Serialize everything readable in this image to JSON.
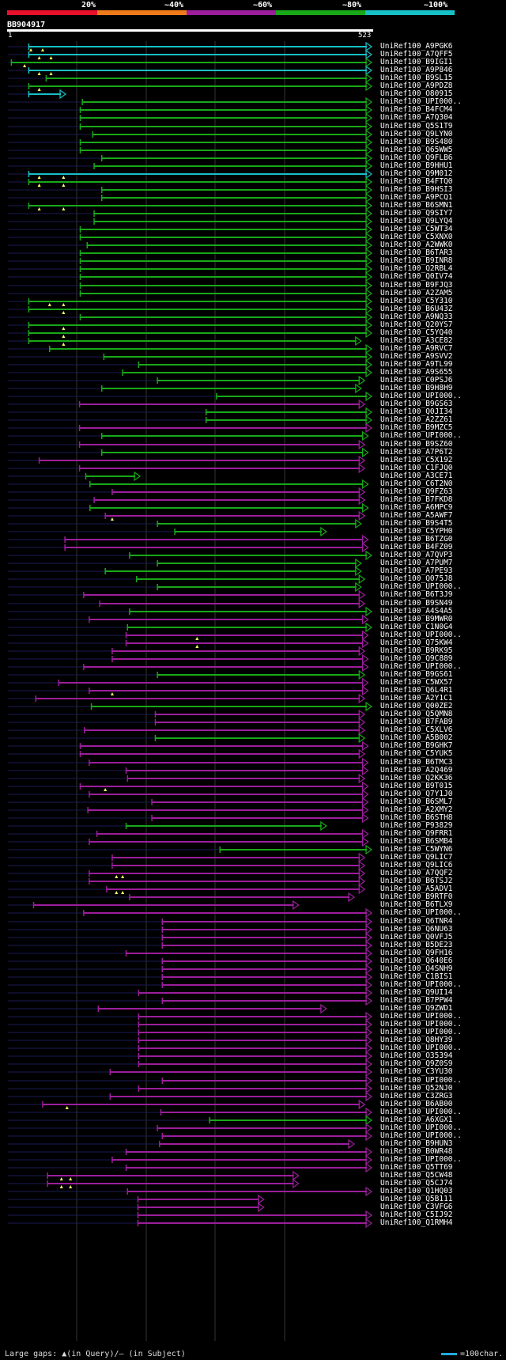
{
  "legend": {
    "labels": [
      "20%",
      "~40%",
      "~60%",
      "~80%",
      "~100%"
    ],
    "colors": [
      "#e8102a",
      "#ef7a1a",
      "#9c1e9c",
      "#18a818",
      "#16c0c6"
    ]
  },
  "query": {
    "id": "BB904917",
    "start": "1",
    "end": "523",
    "length": 523
  },
  "hits": [
    {
      "id": "UniRef100_A9PGK6",
      "c": "cyan",
      "s": 30,
      "e": 523,
      "t": [
        33,
        50
      ]
    },
    {
      "id": "UniRef100_A7QFF5",
      "c": "cyan",
      "s": 30,
      "e": 523,
      "t": [
        45,
        62
      ]
    },
    {
      "id": "UniRef100_B9IGI1",
      "c": "green",
      "s": 5,
      "e": 523,
      "t": [
        24
      ]
    },
    {
      "id": "UniRef100_A9P846",
      "c": "cyan",
      "s": 30,
      "e": 523,
      "t": [
        45,
        62
      ]
    },
    {
      "id": "UniRef100_B9SL15",
      "c": "green",
      "s": 55,
      "e": 523
    },
    {
      "id": "UniRef100_A9PDZ8",
      "c": "green",
      "s": 30,
      "e": 523,
      "t": [
        45
      ]
    },
    {
      "id": "UniRef100_O80915",
      "c": "cyan",
      "s": 30,
      "e": 83
    },
    {
      "id": "UniRef100_UPI000..",
      "c": "green",
      "s": 107,
      "e": 523
    },
    {
      "id": "UniRef100_B4FCM4",
      "c": "green",
      "s": 104,
      "e": 523
    },
    {
      "id": "UniRef100_A7Q304",
      "c": "green",
      "s": 104,
      "e": 523
    },
    {
      "id": "UniRef100_Q5S1T9",
      "c": "green",
      "s": 104,
      "e": 523
    },
    {
      "id": "UniRef100_Q9LYN0",
      "c": "green",
      "s": 122,
      "e": 523
    },
    {
      "id": "UniRef100_B9S480",
      "c": "green",
      "s": 104,
      "e": 523
    },
    {
      "id": "UniRef100_Q65WW5",
      "c": "green",
      "s": 104,
      "e": 523
    },
    {
      "id": "UniRef100_Q9FLB6",
      "c": "green",
      "s": 135,
      "e": 523
    },
    {
      "id": "UniRef100_B9HHU1",
      "c": "green",
      "s": 124,
      "e": 523
    },
    {
      "id": "UniRef100_Q9M012",
      "c": "cyan",
      "s": 30,
      "e": 523,
      "t": [
        45,
        80
      ]
    },
    {
      "id": "UniRef100_B4FTQ0",
      "c": "green",
      "s": 30,
      "e": 523,
      "t": [
        45,
        80
      ]
    },
    {
      "id": "UniRef100_B9HSI3",
      "c": "green",
      "s": 135,
      "e": 523
    },
    {
      "id": "UniRef100_A9PCQ1",
      "c": "green",
      "s": 135,
      "e": 523
    },
    {
      "id": "UniRef100_B6SMN1",
      "c": "green",
      "s": 30,
      "e": 523,
      "t": [
        45,
        80
      ]
    },
    {
      "id": "UniRef100_Q9SIY7",
      "c": "green",
      "s": 124,
      "e": 523
    },
    {
      "id": "UniRef100_Q9LYQ4",
      "c": "green",
      "s": 124,
      "e": 523
    },
    {
      "id": "UniRef100_C5WT34",
      "c": "green",
      "s": 104,
      "e": 523
    },
    {
      "id": "UniRef100_C5XNX0",
      "c": "green",
      "s": 104,
      "e": 523
    },
    {
      "id": "UniRef100_A2WWK0",
      "c": "green",
      "s": 114,
      "e": 523
    },
    {
      "id": "UniRef100_B6TAR3",
      "c": "green",
      "s": 104,
      "e": 523
    },
    {
      "id": "UniRef100_B9INR8",
      "c": "green",
      "s": 104,
      "e": 523
    },
    {
      "id": "UniRef100_Q2RBL4",
      "c": "green",
      "s": 104,
      "e": 523
    },
    {
      "id": "UniRef100_Q0IV74",
      "c": "green",
      "s": 104,
      "e": 523
    },
    {
      "id": "UniRef100_B9FJQ3",
      "c": "green",
      "s": 104,
      "e": 523
    },
    {
      "id": "UniRef100_A2ZAM5",
      "c": "green",
      "s": 104,
      "e": 523
    },
    {
      "id": "UniRef100_C5Y310",
      "c": "green",
      "s": 30,
      "e": 523,
      "t": [
        60,
        80
      ]
    },
    {
      "id": "UniRef100_B6U43Z",
      "c": "green",
      "s": 30,
      "e": 523,
      "t": [
        80
      ]
    },
    {
      "id": "UniRef100_A9NQ33",
      "c": "green",
      "s": 104,
      "e": 523
    },
    {
      "id": "UniRef100_Q20YS7",
      "c": "green",
      "s": 30,
      "e": 523,
      "t": [
        80
      ]
    },
    {
      "id": "UniRef100_C5YQ40",
      "c": "green",
      "s": 30,
      "e": 523,
      "t": [
        80
      ]
    },
    {
      "id": "UniRef100_A3CE82",
      "c": "green",
      "s": 30,
      "e": 508,
      "t": [
        80
      ]
    },
    {
      "id": "UniRef100_A9RVC7",
      "c": "green",
      "s": 60,
      "e": 523
    },
    {
      "id": "UniRef100_A9SVV2",
      "c": "green",
      "s": 138,
      "e": 523
    },
    {
      "id": "UniRef100_A9TL99",
      "c": "green",
      "s": 188,
      "e": 523
    },
    {
      "id": "UniRef100_A9S655",
      "c": "green",
      "s": 165,
      "e": 523
    },
    {
      "id": "UniRef100_C0PSJ6",
      "c": "green",
      "s": 215,
      "e": 513
    },
    {
      "id": "UniRef100_B9H8H9",
      "c": "green",
      "s": 135,
      "e": 508
    },
    {
      "id": "UniRef100_UPI000..",
      "c": "green",
      "s": 300,
      "e": 523
    },
    {
      "id": "UniRef100_B9GS63",
      "c": "magenta",
      "s": 103,
      "e": 513
    },
    {
      "id": "UniRef100_Q0JI34",
      "c": "green",
      "s": 285,
      "e": 523
    },
    {
      "id": "UniRef100_A2ZZ61",
      "c": "green",
      "s": 285,
      "e": 523
    },
    {
      "id": "UniRef100_B9MZC5",
      "c": "magenta",
      "s": 103,
      "e": 523
    },
    {
      "id": "UniRef100_UPI000..",
      "c": "green",
      "s": 135,
      "e": 518
    },
    {
      "id": "UniRef100_B9SZ60",
      "c": "magenta",
      "s": 103,
      "e": 513
    },
    {
      "id": "UniRef100_A7P6T2",
      "c": "green",
      "s": 135,
      "e": 518
    },
    {
      "id": "UniRef100_C5X192",
      "c": "magenta",
      "s": 45,
      "e": 513
    },
    {
      "id": "UniRef100_C1FJQ0",
      "c": "magenta",
      "s": 103,
      "e": 513
    },
    {
      "id": "UniRef100_A3CE71",
      "c": "green",
      "s": 112,
      "e": 190
    },
    {
      "id": "UniRef100_C6T2N0",
      "c": "green",
      "s": 118,
      "e": 518
    },
    {
      "id": "UniRef100_Q9FZ63",
      "c": "magenta",
      "s": 150,
      "e": 513
    },
    {
      "id": "UniRef100_B7FKD8",
      "c": "magenta",
      "s": 124,
      "e": 513
    },
    {
      "id": "UniRef100_A6MPC9",
      "c": "green",
      "s": 118,
      "e": 518
    },
    {
      "id": "UniRef100_A5AWF7",
      "c": "magenta",
      "s": 140,
      "e": 513,
      "t": [
        150
      ]
    },
    {
      "id": "UniRef100_B9S4T5",
      "c": "green",
      "s": 215,
      "e": 508
    },
    {
      "id": "UniRef100_C5YPH0",
      "c": "green",
      "s": 240,
      "e": 458
    },
    {
      "id": "UniRef100_B6TZG0",
      "c": "magenta",
      "s": 82,
      "e": 518
    },
    {
      "id": "UniRef100_B4FZ09",
      "c": "magenta",
      "s": 82,
      "e": 518
    },
    {
      "id": "UniRef100_A7QVP3",
      "c": "green",
      "s": 175,
      "e": 523
    },
    {
      "id": "UniRef100_A7PUM7",
      "c": "green",
      "s": 215,
      "e": 508
    },
    {
      "id": "UniRef100_A7PE93",
      "c": "green",
      "s": 140,
      "e": 508
    },
    {
      "id": "UniRef100_Q075J8",
      "c": "green",
      "s": 185,
      "e": 513
    },
    {
      "id": "UniRef100_UPI000..",
      "c": "green",
      "s": 215,
      "e": 508
    },
    {
      "id": "UniRef100_B6T3J9",
      "c": "magenta",
      "s": 109,
      "e": 513
    },
    {
      "id": "UniRef100_B9SN49",
      "c": "magenta",
      "s": 132,
      "e": 513
    },
    {
      "id": "UniRef100_A4S4A5",
      "c": "green",
      "s": 175,
      "e": 523
    },
    {
      "id": "UniRef100_B9MWR0",
      "c": "magenta",
      "s": 117,
      "e": 518
    },
    {
      "id": "UniRef100_C1N0G4",
      "c": "green",
      "s": 172,
      "e": 523
    },
    {
      "id": "UniRef100_UPI000..",
      "c": "magenta",
      "s": 170,
      "e": 518,
      "t": [
        272
      ]
    },
    {
      "id": "UniRef100_Q75KW4",
      "c": "magenta",
      "s": 170,
      "e": 518,
      "t": [
        272
      ]
    },
    {
      "id": "UniRef100_B9RK95",
      "c": "magenta",
      "s": 150,
      "e": 513
    },
    {
      "id": "UniRef100_Q9C889",
      "c": "magenta",
      "s": 150,
      "e": 518
    },
    {
      "id": "UniRef100_UPI000..",
      "c": "magenta",
      "s": 109,
      "e": 518
    },
    {
      "id": "UniRef100_B9GS61",
      "c": "green",
      "s": 215,
      "e": 513
    },
    {
      "id": "UniRef100_C5WX57",
      "c": "magenta",
      "s": 73,
      "e": 518
    },
    {
      "id": "UniRef100_Q6L4R1",
      "c": "magenta",
      "s": 117,
      "e": 518,
      "t": [
        150
      ]
    },
    {
      "id": "UniRef100_A2Y1C1",
      "c": "magenta",
      "s": 40,
      "e": 513
    },
    {
      "id": "UniRef100_Q00ZE2",
      "c": "green",
      "s": 120,
      "e": 523
    },
    {
      "id": "UniRef100_Q5QMN8",
      "c": "magenta",
      "s": 212,
      "e": 513
    },
    {
      "id": "UniRef100_B7FAB9",
      "c": "magenta",
      "s": 212,
      "e": 513
    },
    {
      "id": "UniRef100_C5XLV6",
      "c": "magenta",
      "s": 110,
      "e": 513
    },
    {
      "id": "UniRef100_A5B002",
      "c": "green",
      "s": 212,
      "e": 513
    },
    {
      "id": "UniRef100_B9GHK7",
      "c": "magenta",
      "s": 104,
      "e": 518
    },
    {
      "id": "UniRef100_C5YUK5",
      "c": "magenta",
      "s": 104,
      "e": 513
    },
    {
      "id": "UniRef100_B6TMC3",
      "c": "magenta",
      "s": 117,
      "e": 518
    },
    {
      "id": "UniRef100_A2Q469",
      "c": "magenta",
      "s": 170,
      "e": 518
    },
    {
      "id": "UniRef100_Q2KK36",
      "c": "magenta",
      "s": 172,
      "e": 513
    },
    {
      "id": "UniRef100_B9T015",
      "c": "magenta",
      "s": 104,
      "e": 518,
      "t": [
        140
      ]
    },
    {
      "id": "UniRef100_Q7Y1J0",
      "c": "magenta",
      "s": 117,
      "e": 518
    },
    {
      "id": "UniRef100_B6SML7",
      "c": "magenta",
      "s": 207,
      "e": 518
    },
    {
      "id": "UniRef100_A2XMY2",
      "c": "magenta",
      "s": 115,
      "e": 518
    },
    {
      "id": "UniRef100_B6STH8",
      "c": "magenta",
      "s": 207,
      "e": 518
    },
    {
      "id": "UniRef100_P93829",
      "c": "green",
      "s": 170,
      "e": 458
    },
    {
      "id": "UniRef100_Q9FRR1",
      "c": "magenta",
      "s": 128,
      "e": 518
    },
    {
      "id": "UniRef100_B6SMB4",
      "c": "magenta",
      "s": 117,
      "e": 518
    },
    {
      "id": "UniRef100_C5WYN6",
      "c": "green",
      "s": 305,
      "e": 523
    },
    {
      "id": "UniRef100_Q9LIC7",
      "c": "magenta",
      "s": 150,
      "e": 513
    },
    {
      "id": "UniRef100_Q9LIC6",
      "c": "magenta",
      "s": 150,
      "e": 513
    },
    {
      "id": "UniRef100_A7QQF2",
      "c": "magenta",
      "s": 117,
      "e": 513,
      "t": [
        156,
        165
      ]
    },
    {
      "id": "UniRef100_B6TSJ2",
      "c": "magenta",
      "s": 117,
      "e": 513
    },
    {
      "id": "UniRef100_A5ADV1",
      "c": "magenta",
      "s": 142,
      "e": 513,
      "t": [
        156,
        165
      ]
    },
    {
      "id": "UniRef100_B9RTF0",
      "c": "magenta",
      "s": 175,
      "e": 498
    },
    {
      "id": "UniRef100_B6TLX9",
      "c": "magenta",
      "s": 37,
      "e": 418
    },
    {
      "id": "UniRef100_UPI000..",
      "c": "magenta",
      "s": 109,
      "e": 523
    },
    {
      "id": "UniRef100_Q6TNR4",
      "c": "magenta",
      "s": 222,
      "e": 523
    },
    {
      "id": "UniRef100_Q6NU63",
      "c": "magenta",
      "s": 222,
      "e": 523
    },
    {
      "id": "UniRef100_Q0VFJ5",
      "c": "magenta",
      "s": 222,
      "e": 523
    },
    {
      "id": "UniRef100_B5DE23",
      "c": "magenta",
      "s": 222,
      "e": 523
    },
    {
      "id": "UniRef100_Q9FH16",
      "c": "magenta",
      "s": 170,
      "e": 523
    },
    {
      "id": "UniRef100_Q640E6",
      "c": "magenta",
      "s": 222,
      "e": 523
    },
    {
      "id": "UniRef100_Q4SNH9",
      "c": "magenta",
      "s": 222,
      "e": 523
    },
    {
      "id": "UniRef100_C1BIS1",
      "c": "magenta",
      "s": 222,
      "e": 523
    },
    {
      "id": "UniRef100_UPI000..",
      "c": "magenta",
      "s": 222,
      "e": 523
    },
    {
      "id": "UniRef100_Q9UI14",
      "c": "magenta",
      "s": 188,
      "e": 523
    },
    {
      "id": "UniRef100_B7PPW4",
      "c": "magenta",
      "s": 222,
      "e": 523
    },
    {
      "id": "UniRef100_Q9ZWD1",
      "c": "magenta",
      "s": 130,
      "e": 458
    },
    {
      "id": "UniRef100_UPI000..",
      "c": "magenta",
      "s": 188,
      "e": 523
    },
    {
      "id": "UniRef100_UPI000..",
      "c": "magenta",
      "s": 188,
      "e": 523
    },
    {
      "id": "UniRef100_UPI000..",
      "c": "magenta",
      "s": 188,
      "e": 523
    },
    {
      "id": "UniRef100_Q8HY39",
      "c": "magenta",
      "s": 188,
      "e": 523
    },
    {
      "id": "UniRef100_UPI000..",
      "c": "magenta",
      "s": 188,
      "e": 523
    },
    {
      "id": "UniRef100_O35394",
      "c": "magenta",
      "s": 188,
      "e": 523
    },
    {
      "id": "UniRef100_Q9Z0S9",
      "c": "magenta",
      "s": 188,
      "e": 523
    },
    {
      "id": "UniRef100_C3YU30",
      "c": "magenta",
      "s": 147,
      "e": 523
    },
    {
      "id": "UniRef100_UPI000..",
      "c": "magenta",
      "s": 222,
      "e": 523
    },
    {
      "id": "UniRef100_Q52NJ0",
      "c": "magenta",
      "s": 188,
      "e": 523
    },
    {
      "id": "UniRef100_C3ZRG3",
      "c": "magenta",
      "s": 147,
      "e": 523
    },
    {
      "id": "UniRef100_B6AB00",
      "c": "magenta",
      "s": 50,
      "e": 513,
      "t": [
        85
      ]
    },
    {
      "id": "UniRef100_UPI000..",
      "c": "magenta",
      "s": 220,
      "e": 523
    },
    {
      "id": "UniRef100_A6XGX1",
      "c": "green",
      "s": 290,
      "e": 523
    },
    {
      "id": "UniRef100_UPI000..",
      "c": "magenta",
      "s": 215,
      "e": 523
    },
    {
      "id": "UniRef100_UPI000..",
      "c": "magenta",
      "s": 222,
      "e": 523
    },
    {
      "id": "UniRef100_B9HUN3",
      "c": "magenta",
      "s": 218,
      "e": 498
    },
    {
      "id": "UniRef100_B0WR48",
      "c": "magenta",
      "s": 170,
      "e": 523
    },
    {
      "id": "UniRef100_UPI000..",
      "c": "magenta",
      "s": 150,
      "e": 523
    },
    {
      "id": "UniRef100_Q5TT69",
      "c": "magenta",
      "s": 170,
      "e": 523
    },
    {
      "id": "UniRef100_Q5CW48",
      "c": "magenta",
      "s": 57,
      "e": 418,
      "t": [
        77,
        90
      ]
    },
    {
      "id": "UniRef100_Q5CJ74",
      "c": "magenta",
      "s": 57,
      "e": 418,
      "t": [
        77,
        90
      ]
    },
    {
      "id": "UniRef100_Q1HQ03",
      "c": "magenta",
      "s": 172,
      "e": 523
    },
    {
      "id": "UniRef100_Q5B111",
      "c": "magenta",
      "s": 187,
      "e": 368
    },
    {
      "id": "UniRef100_C3VFG6",
      "c": "magenta",
      "s": 187,
      "e": 368
    },
    {
      "id": "UniRef100_C5IJ92",
      "c": "magenta",
      "s": 187,
      "e": 523
    },
    {
      "id": "UniRef100_Q1RMH4",
      "c": "magenta",
      "s": 187,
      "e": 523
    }
  ],
  "footer": {
    "left": "Large gaps: ▲(in Query)/— (in Subject)",
    "right": "=100char."
  }
}
